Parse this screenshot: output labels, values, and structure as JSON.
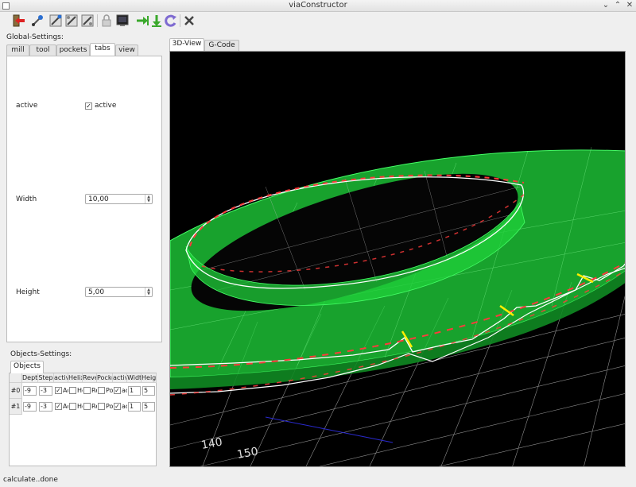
{
  "window": {
    "title": "viaConstructor"
  },
  "toolbar": {
    "icons": [
      "exit-icon",
      "load-icon",
      "save-icon",
      "save-gcode-icon",
      "save-setup-icon",
      "lock-icon",
      "machine-icon",
      "move-in-icon",
      "move-down-icon",
      "rotate-icon",
      "close-icon"
    ]
  },
  "global": {
    "label": "Global-Settings:",
    "tabs": [
      "mill",
      "tool",
      "pockets",
      "tabs",
      "view"
    ],
    "active_tab": "tabs",
    "rows": {
      "active": {
        "label": "active",
        "checkbox_label": "active",
        "checked": true,
        "check_mark": "✓"
      },
      "width": {
        "label": "Width",
        "value": "10,00"
      },
      "height": {
        "label": "Height",
        "value": "5,00"
      }
    },
    "spin_up": "▲",
    "spin_down": "▼"
  },
  "objects": {
    "label": "Objects-Settings:",
    "tabs": [
      "Objects"
    ],
    "headers": [
      "Depth",
      "Step",
      "active",
      "Helix",
      "Reverse",
      "Pocket",
      "active",
      "Width",
      "Height"
    ],
    "rows": [
      {
        "id": "#0",
        "depth": "-9",
        "step": "-3",
        "active_label": "Ac",
        "helix_label": "He",
        "reverse_label": "Re",
        "pocket_label": "Po",
        "tab_active_label": "ac",
        "width": "1",
        "height": "5"
      },
      {
        "id": "#1",
        "depth": "-9",
        "step": "-3",
        "active_label": "Ac",
        "helix_label": "He",
        "reverse_label": "Re",
        "pocket_label": "Po",
        "tab_active_label": "ac",
        "width": "1",
        "height": "5"
      }
    ]
  },
  "view": {
    "tabs": [
      "3D-View",
      "G-Code"
    ],
    "active_tab": "3D-View",
    "axis_labels": [
      "140",
      "150"
    ],
    "colors": {
      "background": "#000000",
      "part": "#1fd03a",
      "toolpath": "#ffffff",
      "tabs": "#ff3b3b",
      "tab_marker": "#ffee00",
      "grid": "#cfcfcf"
    }
  },
  "status": {
    "text": "calculate..done"
  }
}
